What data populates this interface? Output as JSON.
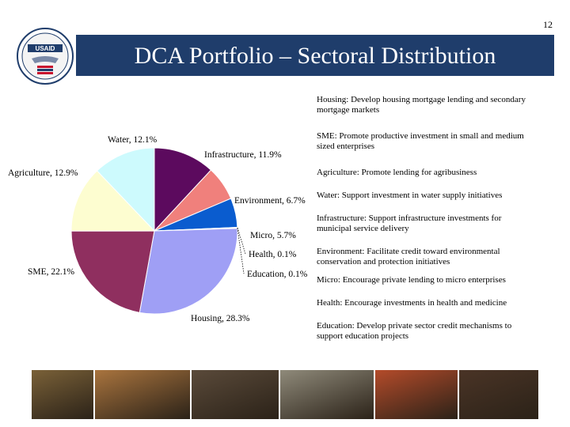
{
  "page_number": "12",
  "logo": {
    "text": "USAID"
  },
  "title": "DCA Portfolio – Sectoral Distribution",
  "chart_data": {
    "type": "pie",
    "slices": [
      {
        "label": "Infrastructure, 11.9%",
        "value": 11.9,
        "color": "#5c0a5e"
      },
      {
        "label": "Environment, 6.7%",
        "value": 6.7,
        "color": "#f0807c"
      },
      {
        "label": "Micro, 5.7%",
        "value": 5.7,
        "color": "#0a5ccf"
      },
      {
        "label": "Health, 0.1%",
        "value": 0.1,
        "color": "#d4e9f5"
      },
      {
        "label": "Education, 0.1%",
        "value": 0.1,
        "color": "#bc8fda"
      },
      {
        "label": "Housing, 28.3%",
        "value": 28.3,
        "color": "#9f9ff5"
      },
      {
        "label": "SME, 22.1%",
        "value": 22.1,
        "color": "#8f2f5f"
      },
      {
        "label": "Agriculture, 12.9%",
        "value": 12.9,
        "color": "#fdfdd0"
      },
      {
        "label": "Water, 12.1%",
        "value": 12.1,
        "color": "#cdfafd"
      }
    ]
  },
  "descriptions": [
    "Housing: Develop housing mortgage lending and secondary mortgage markets",
    "SME: Promote productive investment in small and medium sized enterprises",
    "Agriculture: Promote lending for agribusiness",
    "Water: Support investment in water supply initiatives",
    "Infrastructure: Support infrastructure investments for municipal service delivery",
    "Environment: Facilitate credit toward environmental conservation and protection initiatives",
    "Micro: Encourage private lending to micro enterprises",
    "Health: Encourage investments in health and medicine",
    "Education: Develop private sector credit mechanisms to support education projects"
  ],
  "photos": [
    {
      "name": "farm-field",
      "color": "#7a6138"
    },
    {
      "name": "children-group",
      "color": "#a9743e"
    },
    {
      "name": "community-meeting",
      "color": "#5a4a3a"
    },
    {
      "name": "market-street",
      "color": "#8f8a7a"
    },
    {
      "name": "workshop",
      "color": "#b44b2a"
    },
    {
      "name": "woman-portrait",
      "color": "#4a3426"
    }
  ]
}
